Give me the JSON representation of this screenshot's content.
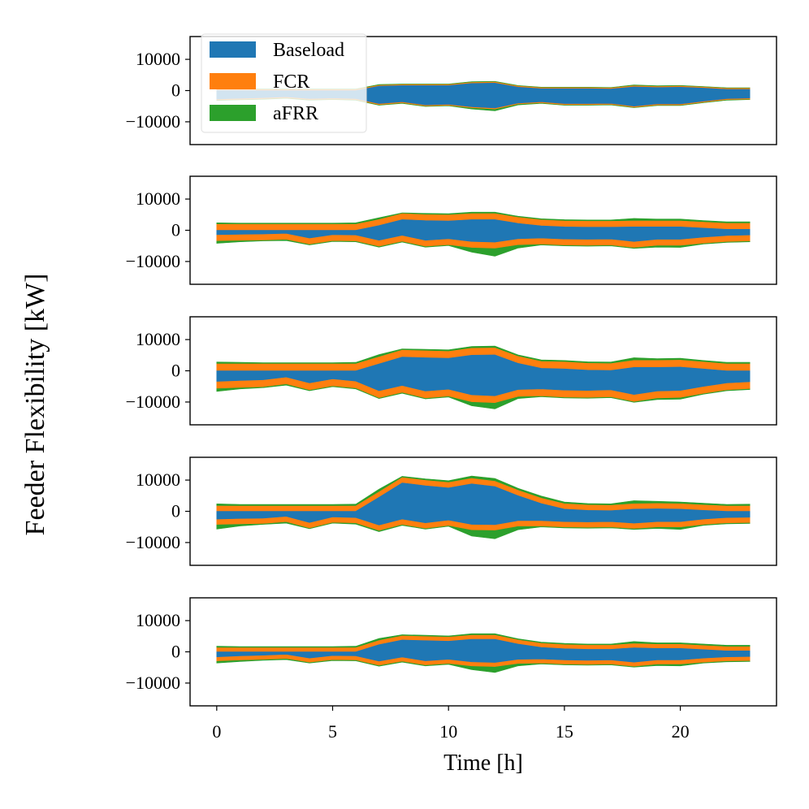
{
  "chart_data": {
    "type": "area",
    "ylabel": "Feeder Flexibility [kW]",
    "xlabel": "Time [h]",
    "xlim": [
      -1.15,
      24.15
    ],
    "ylim": [
      -17300,
      17300
    ],
    "xticks": [
      0,
      5,
      10,
      15,
      20
    ],
    "xtick_labels": [
      "0",
      "5",
      "10",
      "15",
      "20"
    ],
    "yticks": [
      10000,
      0,
      -10000
    ],
    "ytick_labels": [
      "10000",
      "0",
      "−10000"
    ],
    "grid": false,
    "legend": {
      "placement": "upper-left of first subplot",
      "entries": [
        {
          "label": "Baseload",
          "color": "#1f77b4"
        },
        {
          "label": "FCR",
          "color": "#ff7f0e"
        },
        {
          "label": "aFRR",
          "color": "#2ca02c"
        }
      ]
    },
    "hours": [
      0,
      1,
      2,
      3,
      4,
      5,
      6,
      7,
      8,
      9,
      10,
      11,
      12,
      13,
      14,
      15,
      16,
      17,
      18,
      19,
      20,
      21,
      22,
      23
    ],
    "subplots": [
      {
        "base_upper": [
          0,
          0,
          0,
          0,
          0,
          0,
          0,
          1400,
          1600,
          1600,
          1600,
          2300,
          2400,
          1100,
          600,
          600,
          600,
          500,
          1200,
          1000,
          1100,
          800,
          400,
          400
        ],
        "base_lower": [
          -2700,
          -2500,
          -2300,
          -2000,
          -2600,
          -2400,
          -2600,
          -4200,
          -3600,
          -4600,
          -4400,
          -5200,
          -5600,
          -4000,
          -3600,
          -4200,
          -4200,
          -4100,
          -5000,
          -4300,
          -4300,
          -3400,
          -2600,
          -2400
        ],
        "fcr": 300,
        "afrr_up": [
          200,
          200,
          200,
          200,
          200,
          200,
          200,
          250,
          200,
          200,
          200,
          250,
          250,
          200,
          200,
          200,
          200,
          200,
          300,
          250,
          250,
          200,
          200,
          200
        ],
        "afrr_down": [
          200,
          200,
          200,
          200,
          200,
          200,
          200,
          200,
          200,
          200,
          200,
          400,
          600,
          300,
          200,
          200,
          200,
          200,
          200,
          200,
          200,
          200,
          200,
          200
        ]
      },
      {
        "base_upper": [
          0,
          0,
          0,
          0,
          0,
          0,
          0,
          1500,
          3400,
          3100,
          3000,
          3400,
          3400,
          2200,
          1400,
          1100,
          1000,
          1000,
          1100,
          1100,
          1100,
          700,
          300,
          300
        ],
        "base_lower": [
          -1400,
          -1300,
          -1200,
          -1000,
          -2500,
          -1400,
          -1500,
          -3200,
          -1600,
          -3200,
          -2700,
          -3600,
          -3800,
          -2700,
          -2500,
          -2800,
          -2900,
          -2800,
          -3600,
          -2900,
          -2900,
          -2200,
          -1700,
          -1500
        ],
        "fcr": 1900,
        "afrr_up": [
          500,
          400,
          400,
          400,
          400,
          400,
          500,
          600,
          300,
          400,
          400,
          500,
          500,
          400,
          400,
          400,
          400,
          400,
          800,
          600,
          600,
          500,
          500,
          500
        ],
        "afrr_down": [
          900,
          500,
          300,
          400,
          300,
          300,
          300,
          300,
          300,
          300,
          300,
          1500,
          2600,
          1100,
          300,
          300,
          300,
          300,
          300,
          600,
          700,
          300,
          300,
          300
        ]
      },
      {
        "base_upper": [
          0,
          0,
          0,
          0,
          0,
          0,
          0,
          2200,
          4400,
          4200,
          4000,
          5000,
          5100,
          2400,
          800,
          600,
          200,
          100,
          1100,
          1100,
          1200,
          600,
          0,
          0
        ],
        "base_lower": [
          -3400,
          -3100,
          -2900,
          -2000,
          -3900,
          -2600,
          -3300,
          -6400,
          -4700,
          -6500,
          -5900,
          -7700,
          -8000,
          -6000,
          -5800,
          -6200,
          -6300,
          -6100,
          -7600,
          -6500,
          -6300,
          -5000,
          -3900,
          -3500
        ],
        "fcr": 2200,
        "afrr_up": [
          600,
          500,
          400,
          400,
          400,
          400,
          500,
          800,
          400,
          500,
          500,
          600,
          600,
          500,
          500,
          500,
          500,
          500,
          900,
          600,
          600,
          500,
          500,
          500
        ],
        "afrr_down": [
          1000,
          500,
          300,
          400,
          300,
          300,
          300,
          300,
          300,
          300,
          300,
          1300,
          2000,
          700,
          300,
          300,
          300,
          300,
          300,
          500,
          600,
          300,
          300,
          300
        ]
      },
      {
        "base_upper": [
          0,
          0,
          0,
          0,
          0,
          0,
          0,
          4500,
          9100,
          8200,
          7500,
          8800,
          7900,
          5000,
          2500,
          700,
          300,
          200,
          700,
          800,
          700,
          300,
          0,
          0
        ],
        "base_lower": [
          -2500,
          -2300,
          -2200,
          -1600,
          -3600,
          -1800,
          -2000,
          -4400,
          -2500,
          -3700,
          -2800,
          -4200,
          -4300,
          -3000,
          -3000,
          -3300,
          -3400,
          -3300,
          -3800,
          -3300,
          -3300,
          -2500,
          -2000,
          -1900
        ],
        "fcr": 1700,
        "afrr_up": [
          700,
          500,
          500,
          500,
          500,
          500,
          600,
          900,
          400,
          500,
          600,
          800,
          900,
          700,
          700,
          600,
          500,
          500,
          1000,
          700,
          600,
          600,
          500,
          600
        ],
        "afrr_down": [
          1500,
          700,
          300,
          500,
          300,
          300,
          400,
          400,
          300,
          300,
          300,
          2000,
          2800,
          1200,
          300,
          300,
          300,
          300,
          300,
          500,
          800,
          300,
          300,
          300
        ]
      },
      {
        "base_upper": [
          0,
          0,
          0,
          0,
          0,
          0,
          0,
          2300,
          3800,
          3600,
          3400,
          4000,
          4000,
          2500,
          1400,
          1000,
          800,
          800,
          1300,
          1100,
          1100,
          700,
          300,
          300
        ],
        "base_lower": [
          -1600,
          -1300,
          -1100,
          -800,
          -2000,
          -1200,
          -1300,
          -3000,
          -1700,
          -2900,
          -2400,
          -3200,
          -3400,
          -2400,
          -2300,
          -2600,
          -2700,
          -2600,
          -3300,
          -2600,
          -2600,
          -2000,
          -1600,
          -1500
        ],
        "fcr": 1300,
        "afrr_up": [
          500,
          400,
          400,
          400,
          400,
          400,
          500,
          700,
          400,
          400,
          400,
          500,
          500,
          400,
          400,
          400,
          400,
          400,
          700,
          500,
          500,
          500,
          500,
          500
        ],
        "afrr_down": [
          700,
          500,
          300,
          400,
          300,
          300,
          300,
          300,
          300,
          300,
          300,
          1200,
          1900,
          800,
          300,
          300,
          300,
          300,
          300,
          500,
          600,
          300,
          300,
          300
        ]
      }
    ]
  }
}
